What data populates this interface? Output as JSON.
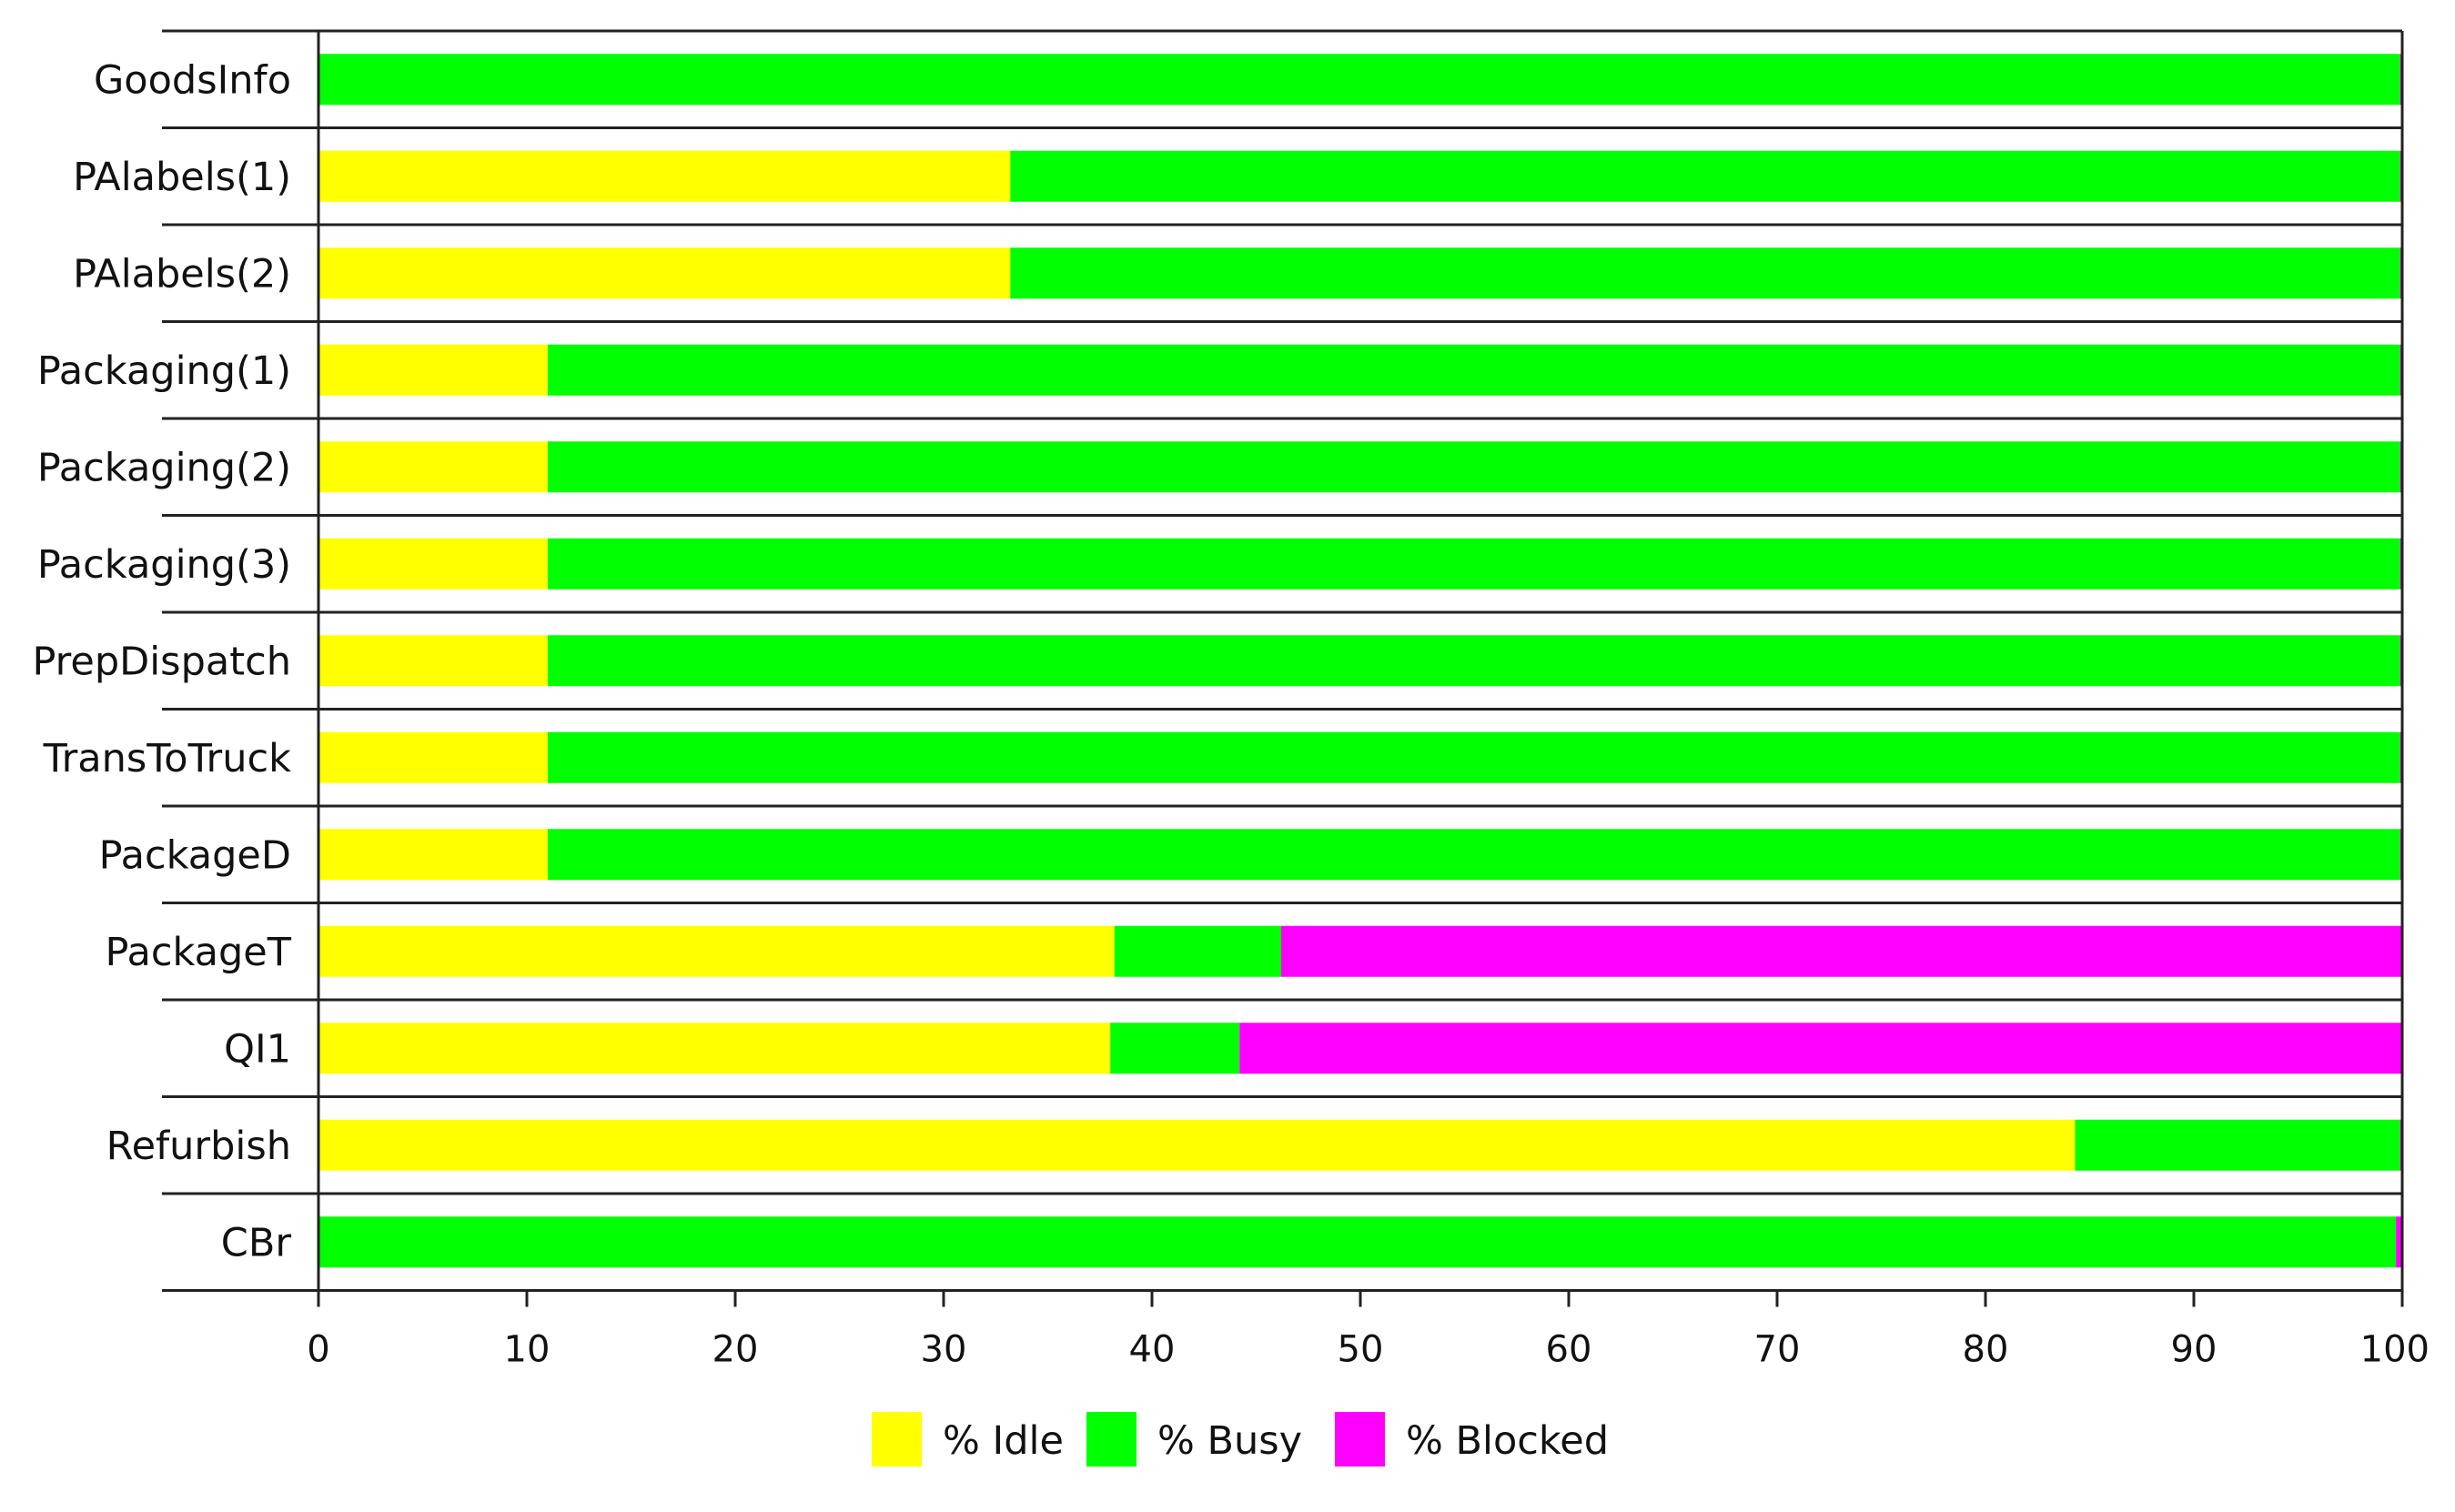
{
  "chart_data": {
    "type": "bar",
    "orientation": "horizontal",
    "stacked": true,
    "categories": [
      "GoodsInfo",
      "PAlabels(1)",
      "PAlabels(2)",
      "Packaging(1)",
      "Packaging(2)",
      "Packaging(3)",
      "PrepDispatch",
      "TransToTruck",
      "PackageD",
      "PackageT",
      "QI1",
      "Refurbish",
      "CBr"
    ],
    "series": [
      {
        "name": "% Idle",
        "color": "#FFFF00",
        "values": [
          0,
          33.2,
          33.2,
          11,
          11,
          11,
          11,
          11,
          11,
          38.2,
          38,
          84.3,
          0
        ]
      },
      {
        "name": "% Busy",
        "color": "#00FF00",
        "values": [
          99.9,
          66.7,
          66.7,
          88.9,
          88.9,
          88.9,
          88.9,
          88.9,
          88.9,
          8,
          6.2,
          15.6,
          99.7
        ]
      },
      {
        "name": "% Blocked",
        "color": "#FF00FF",
        "values": [
          0.1,
          0.1,
          0.1,
          0.1,
          0.1,
          0.1,
          0.1,
          0.1,
          0.1,
          53.8,
          55.8,
          0.1,
          0.3
        ]
      }
    ],
    "xlim": [
      0,
      100
    ],
    "xticks": [
      "0",
      "10",
      "20",
      "30",
      "40",
      "50",
      "60",
      "70",
      "80",
      "90",
      "100"
    ],
    "legend_position": "bottom",
    "grid": "horizontal row separators"
  }
}
